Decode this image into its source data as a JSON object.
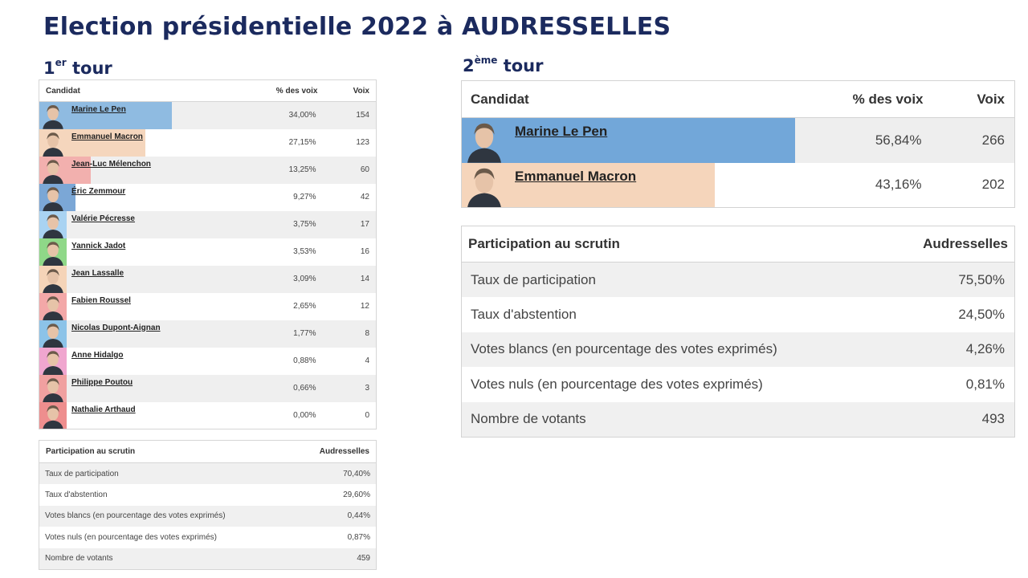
{
  "title": "Election présidentielle 2022 à AUDRESSELLES",
  "round1": {
    "label_num": "1",
    "label_sup": "er",
    "label_word": "tour",
    "headers": {
      "candidate": "Candidat",
      "pct": "% des voix",
      "votes": "Voix"
    },
    "candidates": [
      {
        "name": "Marine Le Pen",
        "pct": "34,00%",
        "votes": "154",
        "share": 34.0,
        "color": "#8fbbe1",
        "icon": "portrait-marine-le-pen"
      },
      {
        "name": "Emmanuel Macron",
        "pct": "27,15%",
        "votes": "123",
        "share": 27.15,
        "color": "#f5d6bd",
        "icon": "portrait-emmanuel-macron"
      },
      {
        "name": "Jean-Luc Mélenchon",
        "pct": "13,25%",
        "votes": "60",
        "share": 13.25,
        "color": "#f2b0ae",
        "icon": "portrait-jean-luc-melenchon"
      },
      {
        "name": "Éric Zemmour",
        "pct": "9,27%",
        "votes": "42",
        "share": 9.27,
        "color": "#7ba7d6",
        "icon": "portrait-eric-zemmour"
      },
      {
        "name": "Valérie Pécresse",
        "pct": "3,75%",
        "votes": "17",
        "share": 3.75,
        "color": "#a9d3f2",
        "icon": "portrait-valerie-pecresse"
      },
      {
        "name": "Yannick Jadot",
        "pct": "3,53%",
        "votes": "16",
        "share": 3.53,
        "color": "#8fd888",
        "icon": "portrait-yannick-jadot"
      },
      {
        "name": "Jean Lassalle",
        "pct": "3,09%",
        "votes": "14",
        "share": 3.09,
        "color": "#f5d4b8",
        "icon": "portrait-jean-lassalle"
      },
      {
        "name": "Fabien Roussel",
        "pct": "2,65%",
        "votes": "12",
        "share": 2.65,
        "color": "#f3a8a8",
        "icon": "portrait-fabien-roussel"
      },
      {
        "name": "Nicolas Dupont-Aignan",
        "pct": "1,77%",
        "votes": "8",
        "share": 1.77,
        "color": "#8cc3e8",
        "icon": "portrait-nicolas-dupont-aignan"
      },
      {
        "name": "Anne Hidalgo",
        "pct": "0,88%",
        "votes": "4",
        "share": 0.88,
        "color": "#f0a6cf",
        "icon": "portrait-anne-hidalgo"
      },
      {
        "name": "Philippe Poutou",
        "pct": "0,66%",
        "votes": "3",
        "share": 0.66,
        "color": "#f0a0a0",
        "icon": "portrait-philippe-poutou"
      },
      {
        "name": "Nathalie Arthaud",
        "pct": "0,00%",
        "votes": "0",
        "share": 0.0,
        "color": "#ee8e8e",
        "icon": "portrait-nathalie-arthaud"
      }
    ],
    "participation": {
      "header_label": "Participation au scrutin",
      "header_place": "Audresselles",
      "rows": [
        {
          "label": "Taux de participation",
          "value": "70,40%"
        },
        {
          "label": "Taux d'abstention",
          "value": "29,60%"
        },
        {
          "label": "Votes blancs (en pourcentage des votes exprimés)",
          "value": "0,44%"
        },
        {
          "label": "Votes nuls (en pourcentage des votes exprimés)",
          "value": "0,87%"
        },
        {
          "label": "Nombre de votants",
          "value": "459"
        }
      ]
    }
  },
  "round2": {
    "label_num": "2",
    "label_sup": "ème",
    "label_word": "tour",
    "headers": {
      "candidate": "Candidat",
      "pct": "% des voix",
      "votes": "Voix"
    },
    "candidates": [
      {
        "name": "Marine Le Pen",
        "pct": "56,84%",
        "votes": "266",
        "share": 56.84,
        "color": "#72a7d9",
        "icon": "portrait-marine-le-pen"
      },
      {
        "name": "Emmanuel Macron",
        "pct": "43,16%",
        "votes": "202",
        "share": 43.16,
        "color": "#f5d5bb",
        "icon": "portrait-emmanuel-macron"
      }
    ],
    "participation": {
      "header_label": "Participation au scrutin",
      "header_place": "Audresselles",
      "rows": [
        {
          "label": "Taux de participation",
          "value": "75,50%"
        },
        {
          "label": "Taux d'abstention",
          "value": "24,50%"
        },
        {
          "label": "Votes blancs (en pourcentage des votes exprimés)",
          "value": "4,26%"
        },
        {
          "label": "Votes nuls (en pourcentage des votes exprimés)",
          "value": "0,81%"
        },
        {
          "label": "Nombre de votants",
          "value": "493"
        }
      ]
    }
  }
}
